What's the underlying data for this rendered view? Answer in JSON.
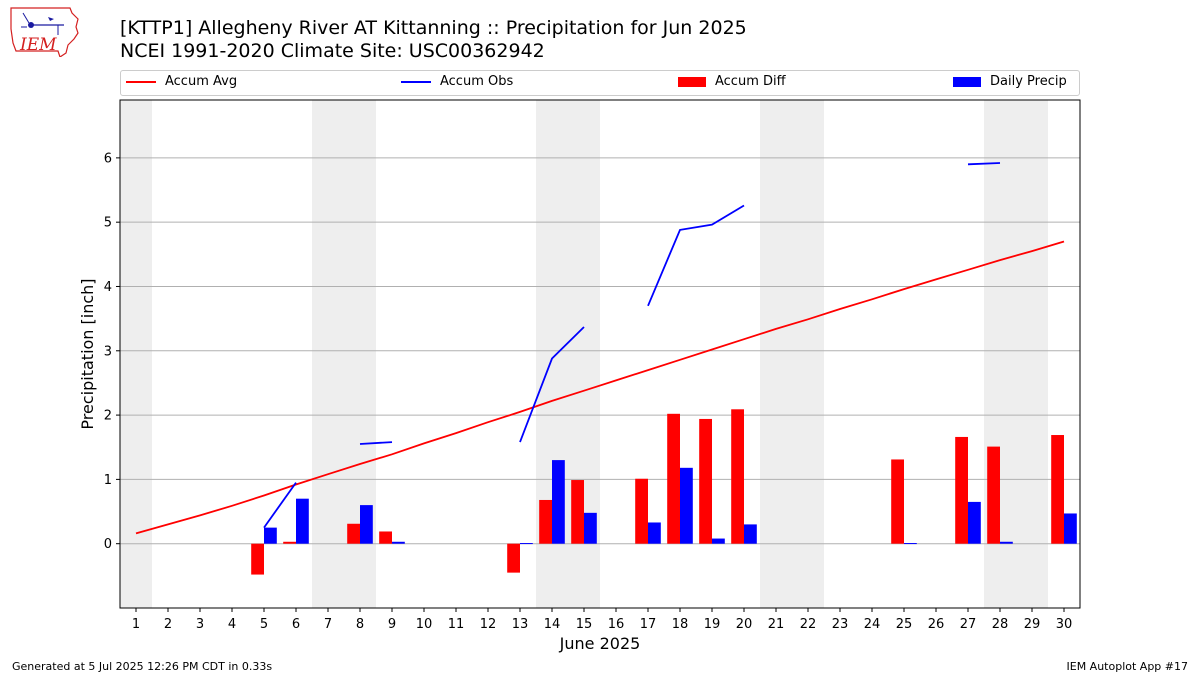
{
  "header": {
    "title_line1": "[KTTP1] Allegheny River  AT Kittanning :: Precipitation for Jun 2025",
    "title_line2": "NCEI 1991-2020 Climate Site: USC00362942"
  },
  "logo": {
    "text": "IEM",
    "icon": "iem-iowa-logo-icon"
  },
  "footer": {
    "generated": "Generated at 5 Jul 2025 12:26 PM CDT in 0.33s",
    "app": "IEM Autoplot App #17"
  },
  "colors": {
    "avg": "#ff0000",
    "obs": "#0000ff",
    "diff": "#ff0000",
    "daily": "#0000ff",
    "weekend_band": "#eeeeee",
    "grid": "#b0b0b0"
  },
  "legend": {
    "placement": "top, above plot",
    "items": [
      {
        "label": "Accum Avg",
        "kind": "line",
        "color": "#ff0000"
      },
      {
        "label": "Accum Obs",
        "kind": "line",
        "color": "#0000ff"
      },
      {
        "label": "Accum Diff",
        "kind": "box",
        "color": "#ff0000"
      },
      {
        "label": "Daily Precip",
        "kind": "box",
        "color": "#0000ff"
      }
    ]
  },
  "chart_data": {
    "type": "bar",
    "title": "[KTTP1] Allegheny River  AT Kittanning :: Precipitation for Jun 2025",
    "subtitle": "NCEI 1991-2020 Climate Site: USC00362942",
    "xlabel": "June 2025",
    "ylabel": "Precipitation [inch]",
    "x": [
      1,
      2,
      3,
      4,
      5,
      6,
      7,
      8,
      9,
      10,
      11,
      12,
      13,
      14,
      15,
      16,
      17,
      18,
      19,
      20,
      21,
      22,
      23,
      24,
      25,
      26,
      27,
      28,
      29,
      30
    ],
    "xlim": [
      0.5,
      30.5
    ],
    "ylim": [
      -1.0,
      6.9
    ],
    "yticks": [
      0,
      1,
      2,
      3,
      4,
      5,
      6
    ],
    "grid": "horizontal",
    "shaded_days": [
      1,
      7,
      8,
      14,
      15,
      21,
      22,
      28,
      29
    ],
    "series": [
      {
        "name": "Accum Avg",
        "type": "line",
        "values": [
          0.16,
          0.3,
          0.44,
          0.59,
          0.75,
          0.92,
          1.08,
          1.24,
          1.39,
          1.56,
          1.72,
          1.89,
          2.05,
          2.22,
          2.38,
          2.54,
          2.7,
          2.86,
          3.02,
          3.18,
          3.34,
          3.49,
          3.65,
          3.8,
          3.96,
          4.11,
          4.26,
          4.41,
          4.55,
          4.7
        ]
      },
      {
        "name": "Accum Obs",
        "type": "line",
        "values": [
          null,
          null,
          null,
          null,
          0.25,
          0.95,
          null,
          1.55,
          1.58,
          null,
          null,
          null,
          1.58,
          2.88,
          3.37,
          null,
          3.7,
          4.88,
          4.96,
          5.26,
          null,
          null,
          null,
          null,
          null,
          null,
          5.9,
          5.92,
          null,
          null
        ]
      },
      {
        "name": "Accum Diff",
        "type": "bar",
        "values": [
          null,
          null,
          null,
          null,
          -0.48,
          0.03,
          null,
          0.31,
          0.19,
          null,
          null,
          null,
          -0.45,
          0.68,
          0.99,
          null,
          1.01,
          2.02,
          1.94,
          2.09,
          null,
          null,
          null,
          null,
          1.31,
          null,
          1.66,
          1.51,
          null,
          1.69
        ]
      },
      {
        "name": "Daily Precip",
        "type": "bar",
        "values": [
          null,
          null,
          null,
          null,
          0.25,
          0.7,
          null,
          0.6,
          0.03,
          null,
          null,
          null,
          0.01,
          1.3,
          0.48,
          null,
          0.33,
          1.18,
          0.08,
          0.3,
          null,
          null,
          null,
          null,
          0.01,
          null,
          0.65,
          0.03,
          null,
          0.47
        ]
      }
    ]
  }
}
